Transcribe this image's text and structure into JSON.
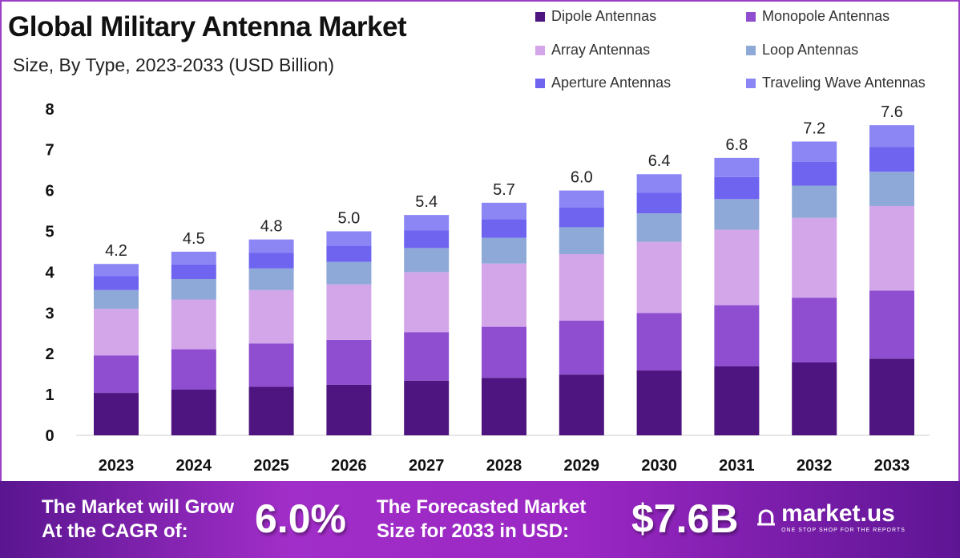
{
  "chart_data": {
    "type": "bar",
    "stacked": true,
    "title": "Global Military Antenna Market",
    "subtitle": "Size, By Type, 2023-2033 (USD Billion)",
    "xlabel": "",
    "ylabel": "",
    "ylim": [
      0,
      8
    ],
    "yticks": [
      "0",
      "1",
      "2",
      "3",
      "4",
      "5",
      "6",
      "7",
      "8"
    ],
    "categories": [
      "2023",
      "2024",
      "2025",
      "2026",
      "2027",
      "2028",
      "2029",
      "2030",
      "2031",
      "2032",
      "2033"
    ],
    "totals": [
      "4.2",
      "4.5",
      "4.8",
      "5.0",
      "5.4",
      "5.7",
      "6.0",
      "6.4",
      "6.8",
      "7.2",
      "7.6"
    ],
    "legend_position": "top-right",
    "series": [
      {
        "name": "Dipole Antennas",
        "color": "#4e1580",
        "values": [
          1.04,
          1.12,
          1.19,
          1.24,
          1.34,
          1.41,
          1.49,
          1.59,
          1.69,
          1.79,
          1.88
        ]
      },
      {
        "name": "Monopole Antennas",
        "color": "#8e4ecf",
        "values": [
          0.92,
          0.99,
          1.06,
          1.1,
          1.19,
          1.25,
          1.32,
          1.41,
          1.5,
          1.58,
          1.67
        ]
      },
      {
        "name": "Array Antennas",
        "color": "#d3a6ea",
        "values": [
          1.14,
          1.22,
          1.31,
          1.36,
          1.47,
          1.55,
          1.63,
          1.74,
          1.85,
          1.96,
          2.07
        ]
      },
      {
        "name": "Loop Antennas",
        "color": "#8ea8d8",
        "values": [
          0.46,
          0.5,
          0.53,
          0.55,
          0.59,
          0.63,
          0.66,
          0.7,
          0.75,
          0.79,
          0.84
        ]
      },
      {
        "name": "Aperture Antennas",
        "color": "#6e64f0",
        "values": [
          0.34,
          0.36,
          0.38,
          0.4,
          0.43,
          0.46,
          0.48,
          0.51,
          0.54,
          0.58,
          0.61
        ]
      },
      {
        "name": "Traveling Wave Antennas",
        "color": "#8c86f5",
        "values": [
          0.3,
          0.31,
          0.33,
          0.35,
          0.38,
          0.4,
          0.42,
          0.45,
          0.47,
          0.5,
          0.53
        ]
      }
    ]
  },
  "banner": {
    "cagr_text_1": "The Market will Grow",
    "cagr_text_2": "At the CAGR of:",
    "cagr_value": "6.0%",
    "forecast_text_1": "The Forecasted Market",
    "forecast_text_2": "Size for 2033 in USD:",
    "forecast_value": "$7.6B",
    "logo_name": "market.us",
    "logo_tagline": "ONE STOP SHOP FOR THE REPORTS"
  }
}
